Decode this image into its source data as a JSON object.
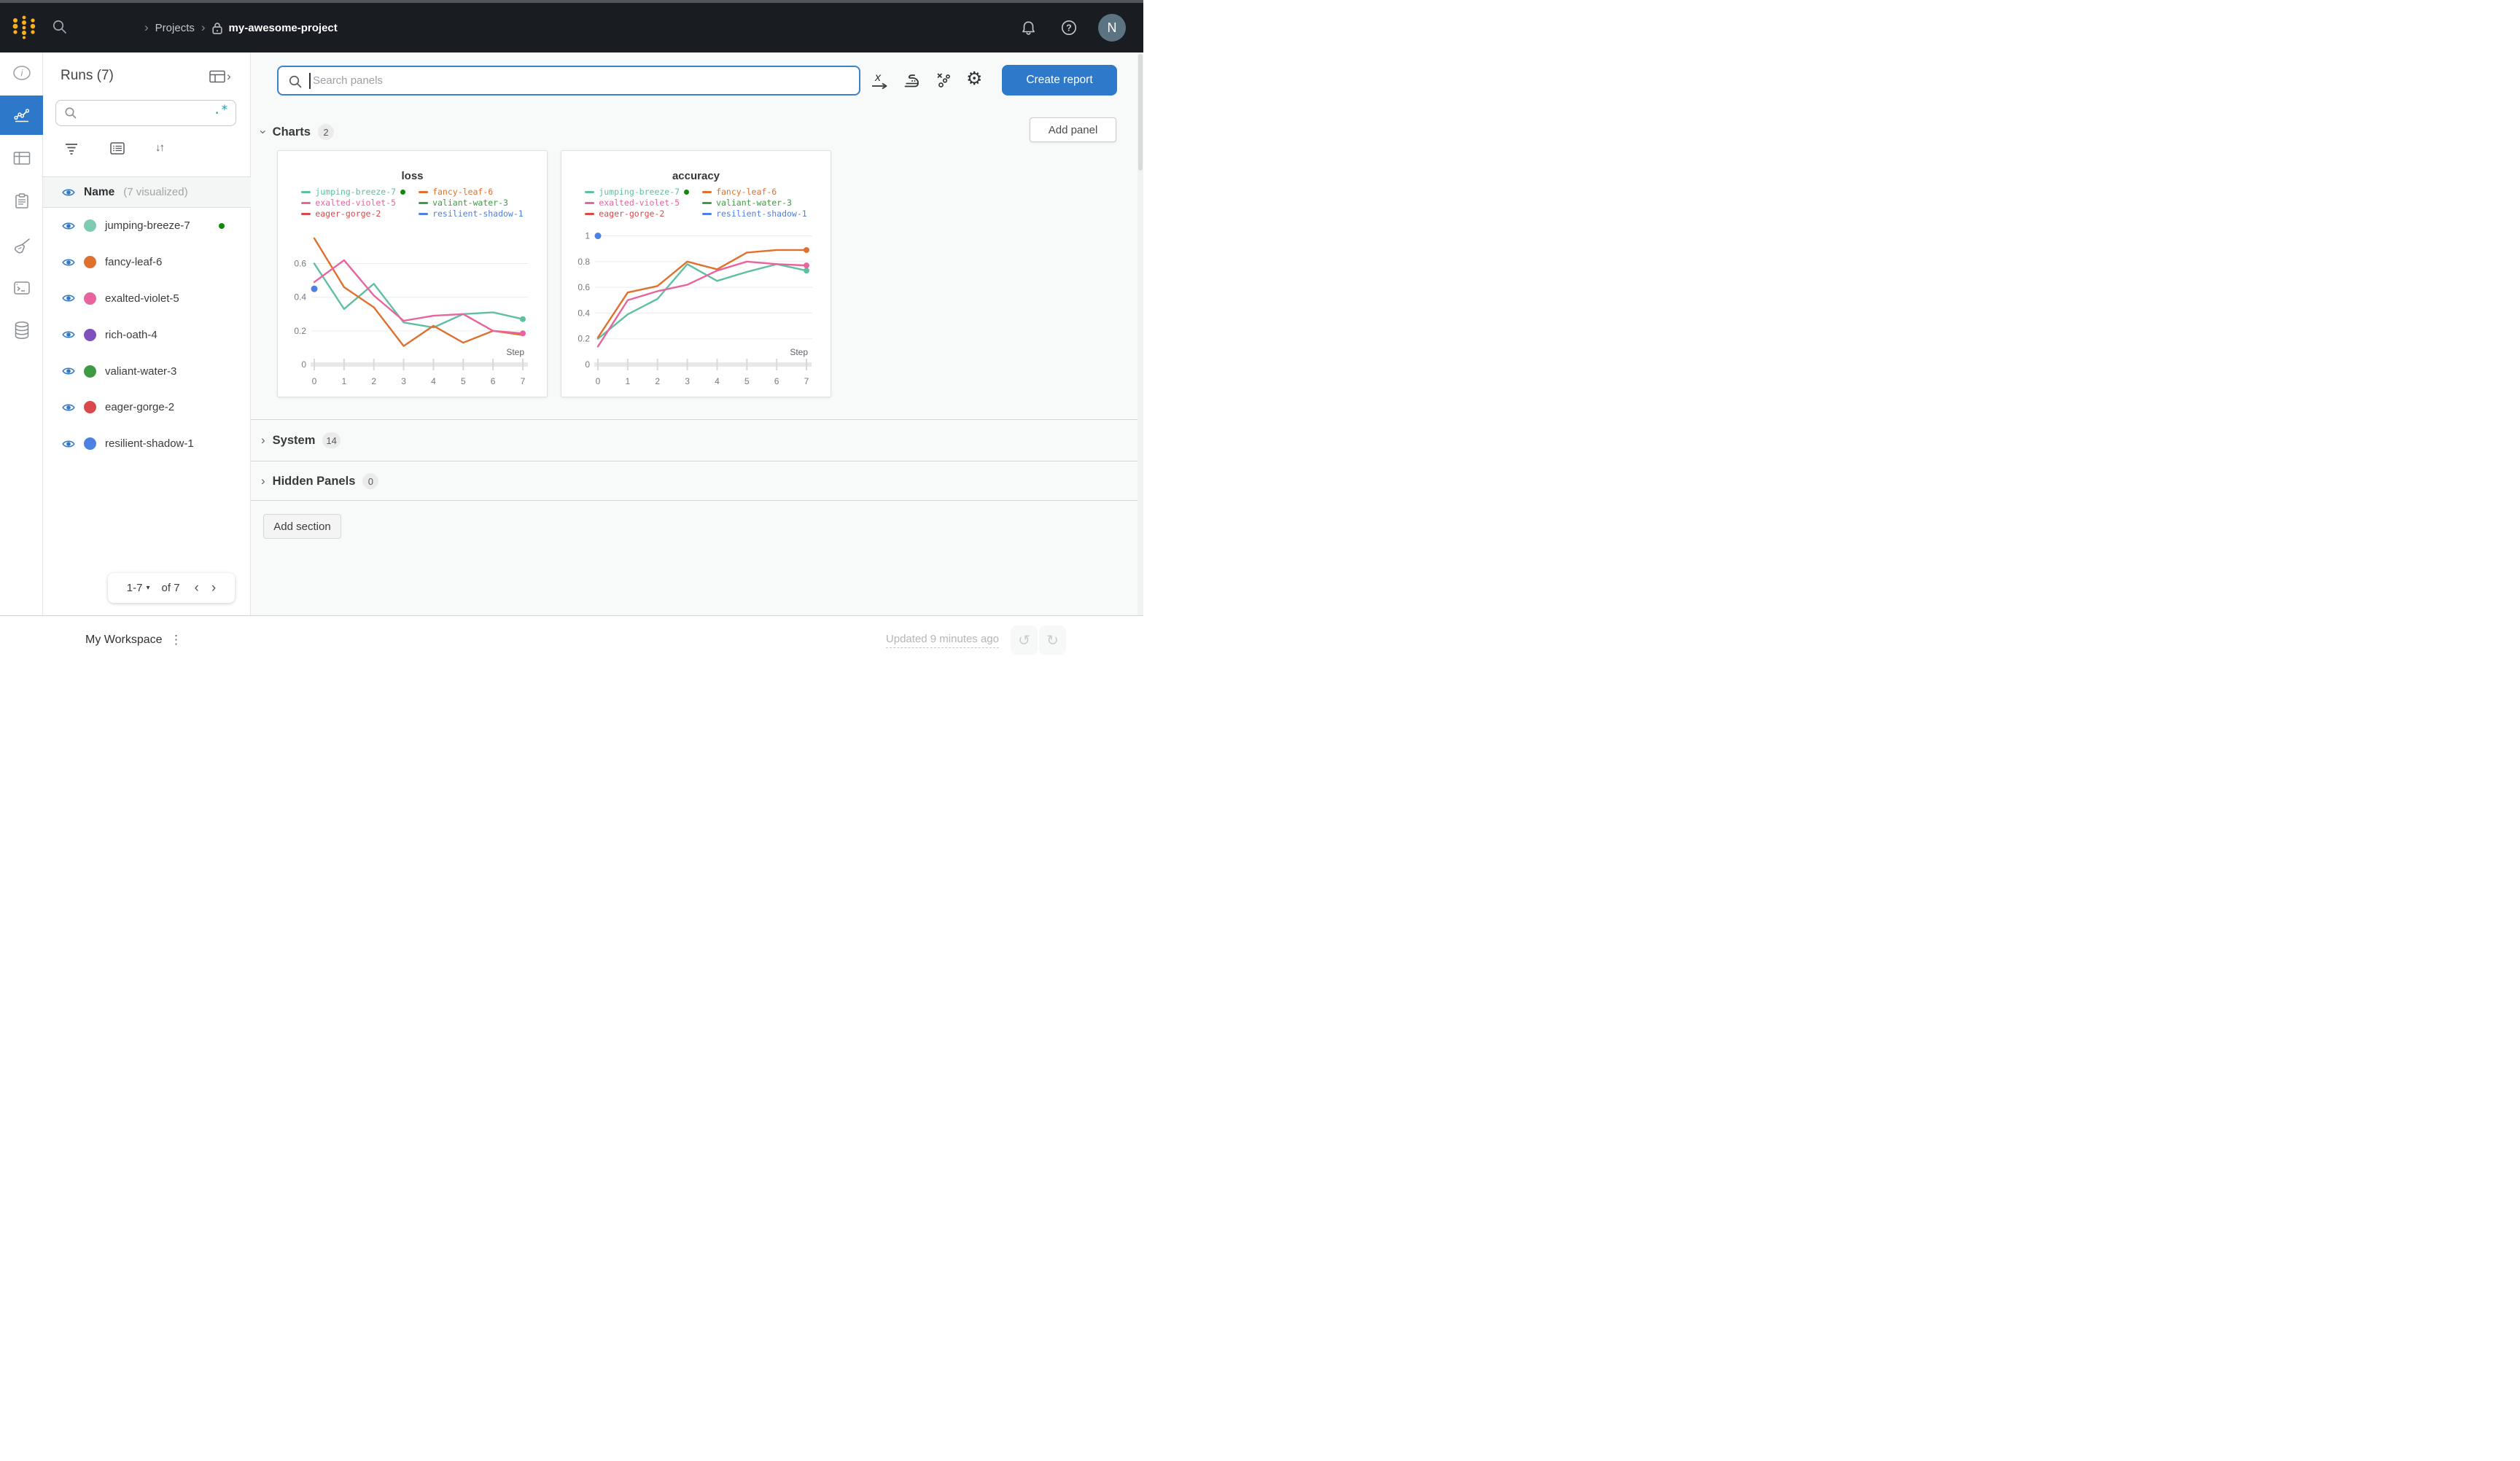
{
  "topbar": {
    "breadcrumb_projects": "Projects",
    "breadcrumb_project": "my-awesome-project",
    "avatar_initial": "N"
  },
  "glyphs": {
    "chevron_right": "›",
    "chevron_left": "‹",
    "caret_down": "▾",
    "kebab": "⋮",
    "sort": "↓↑",
    "gear": "⚙",
    "undo": "↺",
    "redo": "↻"
  },
  "left_rail": {
    "icons": [
      "info",
      "line-chart",
      "table",
      "clipboard",
      "broom",
      "terminal",
      "database"
    ],
    "active_icon": "line-chart",
    "active_color": "#2d78c9"
  },
  "runs_panel": {
    "title": "Runs (7)",
    "search_value": "",
    "regex_icon": ".*",
    "header": {
      "name": "Name",
      "visualized": "(7 visualized)"
    },
    "runs": [
      {
        "name": "jumping-breeze-7",
        "color": "#7fcbb2",
        "running": true
      },
      {
        "name": "fancy-leaf-6",
        "color": "#e0702e",
        "running": false
      },
      {
        "name": "exalted-violet-5",
        "color": "#e9639f",
        "running": false
      },
      {
        "name": "rich-oath-4",
        "color": "#8150c0",
        "running": false
      },
      {
        "name": "valiant-water-3",
        "color": "#3f9a44",
        "running": false
      },
      {
        "name": "eager-gorge-2",
        "color": "#d9494b",
        "running": false
      },
      {
        "name": "resilient-shadow-1",
        "color": "#4e80e1",
        "running": false
      }
    ],
    "pagination": {
      "range": "1-7",
      "of": "of 7"
    }
  },
  "main": {
    "panel_search_placeholder": "Search panels",
    "toolbar_icons": [
      "x-axis",
      "smoothing-iron",
      "outliers",
      "settings-gear"
    ],
    "create_report_label": "Create report",
    "add_panel_label": "Add panel",
    "sections": {
      "charts": {
        "label": "Charts",
        "count": "2"
      },
      "system": {
        "label": "System",
        "count": "14"
      },
      "hidden": {
        "label": "Hidden Panels",
        "count": "0"
      }
    },
    "add_section_label": "Add section"
  },
  "footer": {
    "workspace_label": "My Workspace",
    "updated_label": "Updated 9 minutes ago"
  },
  "chart_data": [
    {
      "type": "line",
      "title": "loss",
      "xlabel": "Step",
      "x": [
        0,
        1,
        2,
        3,
        4,
        5,
        6,
        7
      ],
      "xticks": [
        "0",
        "1",
        "2",
        "3",
        "4",
        "5",
        "6",
        "7"
      ],
      "yticks": [
        0,
        0.2,
        0.4,
        0.6
      ],
      "ylim": [
        0,
        0.78
      ],
      "grid": true,
      "legend_position": "top",
      "series": [
        {
          "name": "jumping-breeze-7",
          "color": "#5ebfa2",
          "running": true,
          "values": [
            0.6,
            0.33,
            0.48,
            0.25,
            0.22,
            0.3,
            0.31,
            0.27
          ],
          "end_dot": true
        },
        {
          "name": "fancy-leaf-6",
          "color": "#e0702e",
          "values": [
            0.75,
            0.46,
            0.34,
            0.11,
            0.23,
            0.13,
            0.2,
            0.175
          ],
          "end_dot": false
        },
        {
          "name": "exalted-violet-5",
          "color": "#e9639f",
          "values": [
            0.49,
            0.62,
            0.41,
            0.26,
            0.29,
            0.3,
            0.2,
            0.185
          ],
          "end_dot": true
        },
        {
          "name": "valiant-water-3",
          "color": "#3f9a44",
          "values": []
        },
        {
          "name": "eager-gorge-2",
          "color": "#d9494b",
          "values": []
        },
        {
          "name": "resilient-shadow-1",
          "color": "#4e80e1",
          "values": [
            0.45
          ],
          "point_only": true
        }
      ]
    },
    {
      "type": "line",
      "title": "accuracy",
      "xlabel": "Step",
      "x": [
        0,
        1,
        2,
        3,
        4,
        5,
        6,
        7
      ],
      "xticks": [
        "0",
        "1",
        "2",
        "3",
        "4",
        "5",
        "6",
        "7"
      ],
      "yticks": [
        0,
        0.2,
        0.4,
        0.6,
        0.8,
        1
      ],
      "ylim": [
        0,
        1.02
      ],
      "grid": true,
      "legend_position": "top",
      "series": [
        {
          "name": "jumping-breeze-7",
          "color": "#5ebfa2",
          "running": true,
          "values": [
            0.2,
            0.39,
            0.51,
            0.78,
            0.65,
            0.72,
            0.78,
            0.73
          ],
          "end_dot": true
        },
        {
          "name": "fancy-leaf-6",
          "color": "#e0702e",
          "values": [
            0.21,
            0.56,
            0.61,
            0.8,
            0.74,
            0.87,
            0.89,
            0.89
          ],
          "end_dot": true
        },
        {
          "name": "exalted-violet-5",
          "color": "#e9639f",
          "values": [
            0.14,
            0.5,
            0.57,
            0.62,
            0.73,
            0.8,
            0.78,
            0.77
          ],
          "end_dot": true
        },
        {
          "name": "valiant-water-3",
          "color": "#3f9a44",
          "values": []
        },
        {
          "name": "eager-gorge-2",
          "color": "#d9494b",
          "values": []
        },
        {
          "name": "resilient-shadow-1",
          "color": "#4e80e1",
          "values": [
            1.0
          ],
          "point_only": true
        }
      ]
    }
  ]
}
